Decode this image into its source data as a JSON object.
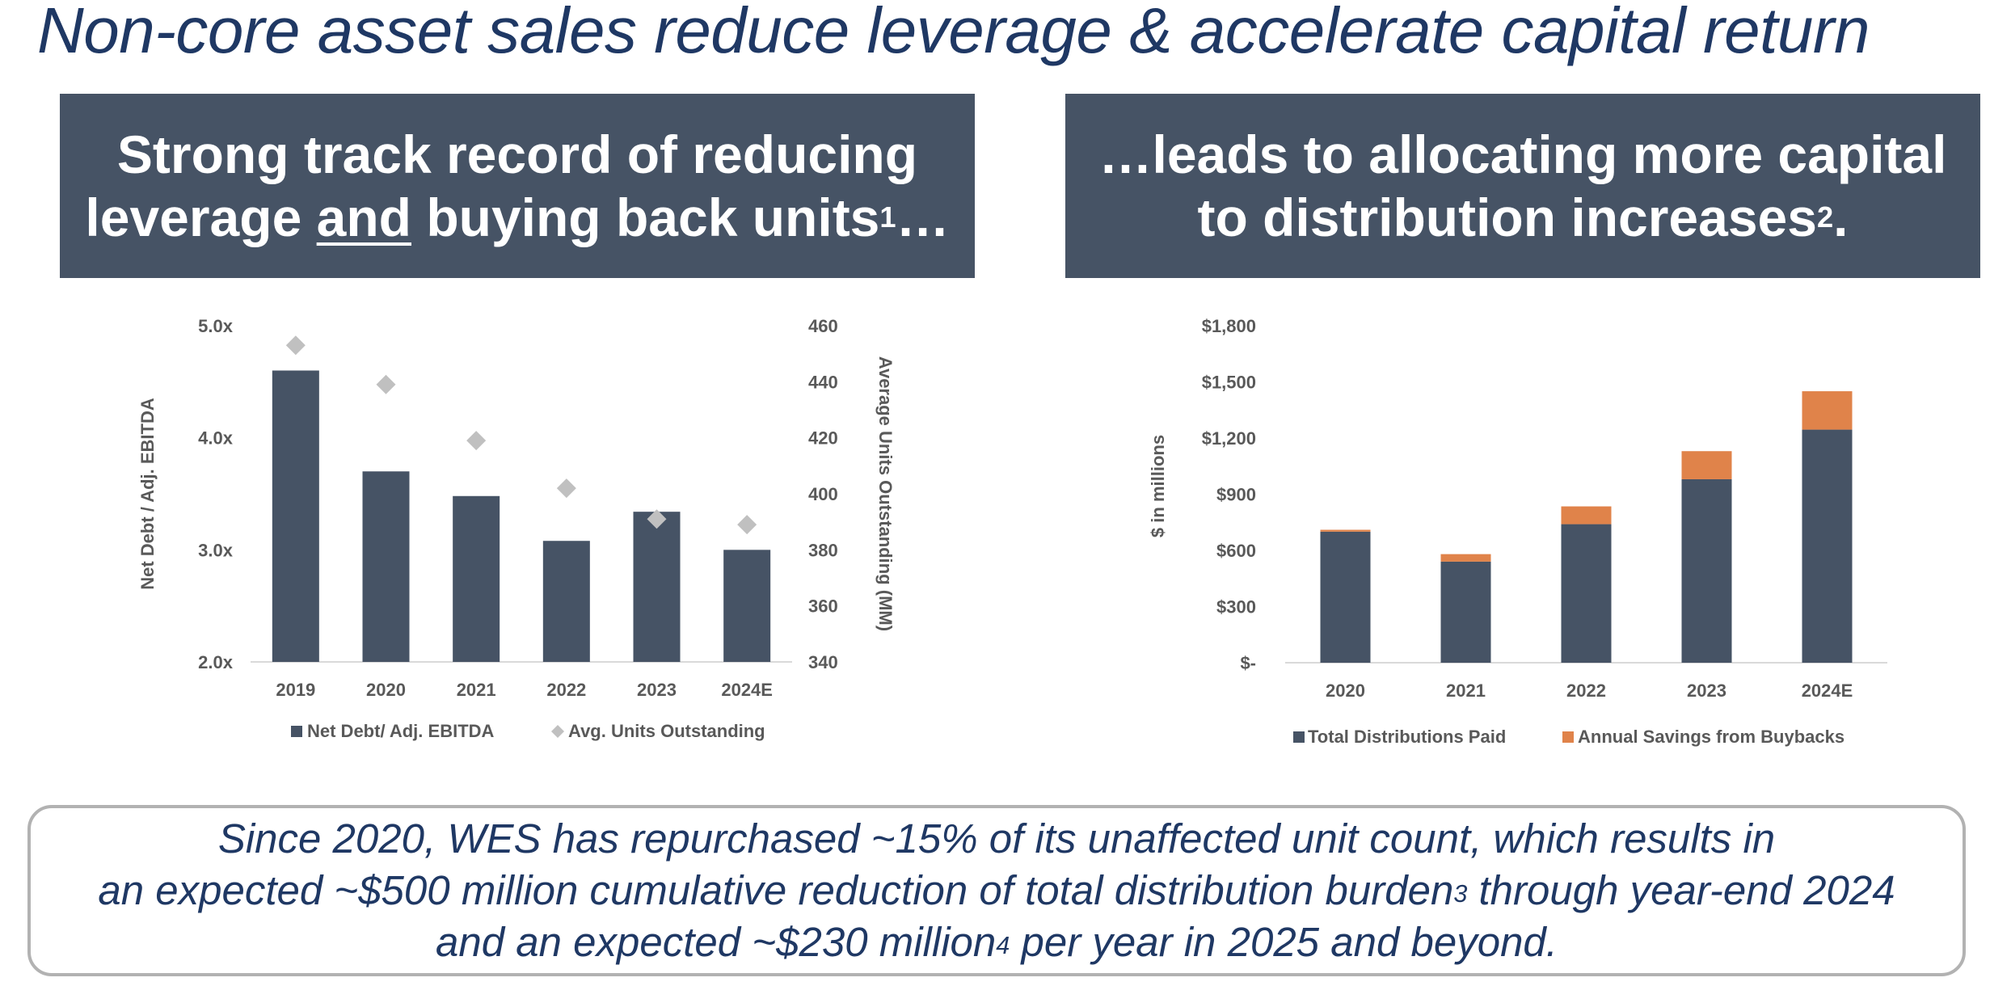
{
  "slide": {
    "title": "Non-core asset sales reduce leverage & accelerate capital return"
  },
  "banner_left": {
    "line1": "Strong track record of reducing",
    "line2_a": "leverage ",
    "line2_b": "and",
    "line2_c": " buying back units",
    "line2_sup": "1",
    "line2_d": "…"
  },
  "banner_right": {
    "line1": "…leads to allocating more capital",
    "line2": "to distribution increases",
    "line2_sup": "2",
    "line2_end": "."
  },
  "callout": {
    "line1": "Since 2020, WES has repurchased ~15% of its unaffected unit count, which results in",
    "line2_a": "an expected ~$500 million cumulative reduction of total distribution burden",
    "line2_sup": "3",
    "line2_b": " through year-end 2024",
    "line3_a": "and an expected ~$230 million",
    "line3_sup": "4",
    "line3_b": " per year in 2025 and beyond."
  },
  "colors": {
    "navy": "#465365",
    "orange": "#e0834a",
    "gray_marker": "#c0c0c0",
    "axis_text": "#595959"
  },
  "chart_data": [
    {
      "type": "bar",
      "categories": [
        "2019",
        "2020",
        "2021",
        "2022",
        "2023",
        "2024E"
      ],
      "series": [
        {
          "name": "Net Debt/ Adj. EBITDA",
          "axis": "left",
          "kind": "bar",
          "values": [
            4.6,
            3.7,
            3.48,
            3.08,
            3.34,
            3.0
          ]
        },
        {
          "name": "Avg. Units Outstanding",
          "axis": "right",
          "kind": "marker",
          "values": [
            453,
            439,
            419,
            402,
            391,
            389
          ]
        }
      ],
      "ylabel": "Net Debt / Adj. EBITDA",
      "y2label": "Average Units Outstanding (MM)",
      "ylim": [
        2.0,
        5.0
      ],
      "yticks": [
        2.0,
        3.0,
        4.0,
        5.0
      ],
      "ytick_labels": [
        "2.0x",
        "3.0x",
        "4.0x",
        "5.0x"
      ],
      "y2lim": [
        340,
        460
      ],
      "y2ticks": [
        340,
        360,
        380,
        400,
        420,
        440,
        460
      ],
      "y2tick_labels": [
        "340",
        "360",
        "380",
        "400",
        "420",
        "440",
        "460"
      ],
      "legend": [
        "Net Debt/ Adj. EBITDA",
        "Avg. Units Outstanding"
      ],
      "legend_position": "bottom"
    },
    {
      "type": "bar",
      "stacked": true,
      "categories": [
        "2020",
        "2021",
        "2022",
        "2023",
        "2024E"
      ],
      "series": [
        {
          "name": "Total Distributions Paid",
          "values": [
            700,
            540,
            740,
            980,
            1245
          ]
        },
        {
          "name": "Annual Savings from Buybacks",
          "values": [
            10,
            40,
            95,
            150,
            205
          ]
        }
      ],
      "ylabel": "$ in millions",
      "ylim": [
        0,
        1800
      ],
      "yticks": [
        0,
        300,
        600,
        900,
        1200,
        1500,
        1800
      ],
      "ytick_labels": [
        "$-",
        "$300",
        "$600",
        "$900",
        "$1,200",
        "$1,500",
        "$1,800"
      ],
      "legend": [
        "Total Distributions Paid",
        "Annual Savings from Buybacks"
      ],
      "legend_position": "bottom"
    }
  ]
}
